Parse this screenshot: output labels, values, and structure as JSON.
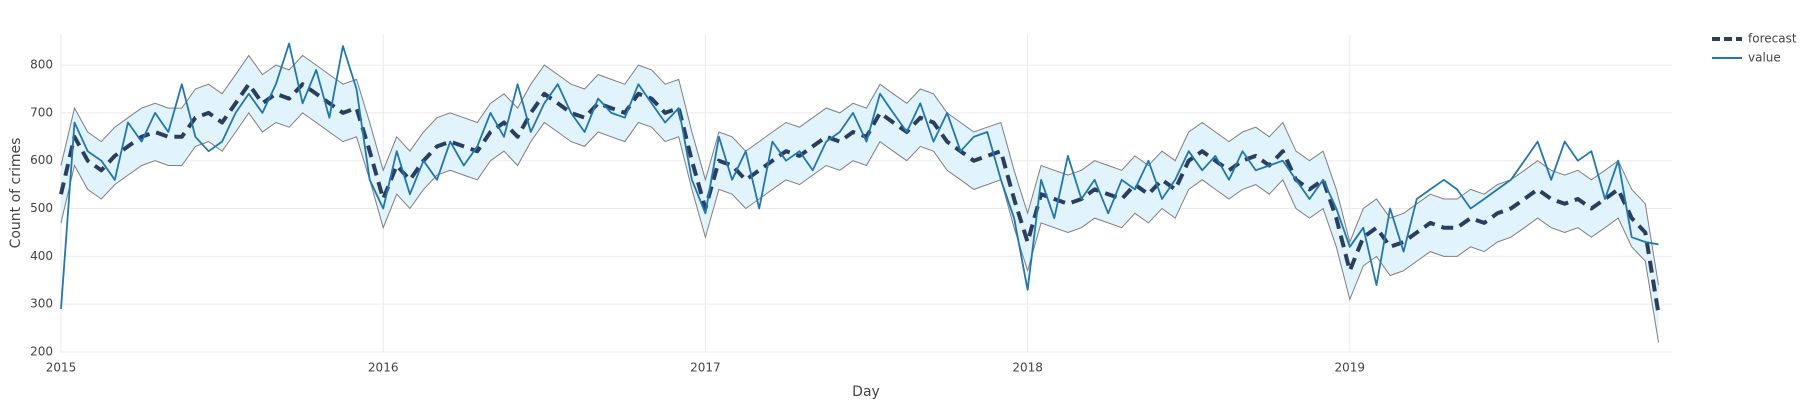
{
  "chart_data": {
    "type": "line",
    "xlabel": "Day",
    "ylabel": "Count of crimes",
    "xlim": [
      2015,
      2020
    ],
    "xticks": [
      2015,
      2016,
      2017,
      2018,
      2019
    ],
    "ylim": [
      200,
      865
    ],
    "yticks": [
      200,
      300,
      400,
      500,
      600,
      700,
      800
    ],
    "grid": true,
    "legend": "outside-top-right",
    "x": [
      2015,
      2015.042,
      2015.083,
      2015.125,
      2015.167,
      2015.208,
      2015.25,
      2015.292,
      2015.333,
      2015.375,
      2015.417,
      2015.458,
      2015.5,
      2015.542,
      2015.583,
      2015.625,
      2015.667,
      2015.708,
      2015.75,
      2015.792,
      2015.833,
      2015.875,
      2015.917,
      2015.958,
      2016,
      2016.042,
      2016.083,
      2016.125,
      2016.167,
      2016.208,
      2016.25,
      2016.292,
      2016.333,
      2016.375,
      2016.417,
      2016.458,
      2016.5,
      2016.542,
      2016.583,
      2016.625,
      2016.667,
      2016.708,
      2016.75,
      2016.792,
      2016.833,
      2016.875,
      2016.917,
      2016.958,
      2017,
      2017.042,
      2017.083,
      2017.125,
      2017.167,
      2017.208,
      2017.25,
      2017.292,
      2017.333,
      2017.375,
      2017.417,
      2017.458,
      2017.5,
      2017.542,
      2017.583,
      2017.625,
      2017.667,
      2017.708,
      2017.75,
      2017.792,
      2017.833,
      2017.875,
      2017.917,
      2017.958,
      2018,
      2018.042,
      2018.083,
      2018.125,
      2018.167,
      2018.208,
      2018.25,
      2018.292,
      2018.333,
      2018.375,
      2018.417,
      2018.458,
      2018.5,
      2018.542,
      2018.583,
      2018.625,
      2018.667,
      2018.708,
      2018.75,
      2018.792,
      2018.833,
      2018.875,
      2018.917,
      2018.958,
      2019,
      2019.042,
      2019.083,
      2019.125,
      2019.167,
      2019.208,
      2019.25,
      2019.292,
      2019.333,
      2019.375,
      2019.417,
      2019.458,
      2019.5,
      2019.542,
      2019.583,
      2019.625,
      2019.667,
      2019.708,
      2019.75,
      2019.792,
      2019.833,
      2019.875,
      2019.917,
      2019.958
    ],
    "band": {
      "fill": "#e1f3fd",
      "line_color": "#7f7f7f",
      "upper": [
        590,
        710,
        660,
        640,
        670,
        690,
        710,
        720,
        710,
        710,
        750,
        760,
        740,
        780,
        820,
        780,
        800,
        790,
        820,
        800,
        780,
        760,
        770,
        680,
        580,
        650,
        620,
        660,
        690,
        700,
        690,
        680,
        720,
        740,
        710,
        760,
        800,
        780,
        760,
        750,
        780,
        770,
        760,
        800,
        790,
        760,
        770,
        660,
        560,
        660,
        650,
        620,
        640,
        660,
        680,
        670,
        690,
        710,
        700,
        720,
        710,
        760,
        740,
        720,
        750,
        740,
        700,
        680,
        660,
        670,
        680,
        580,
        490,
        590,
        580,
        570,
        580,
        600,
        590,
        580,
        610,
        590,
        620,
        600,
        660,
        680,
        660,
        640,
        660,
        670,
        650,
        680,
        620,
        600,
        620,
        540,
        430,
        500,
        520,
        480,
        490,
        510,
        530,
        520,
        520,
        540,
        530,
        550,
        560,
        580,
        600,
        580,
        570,
        580,
        560,
        580,
        600,
        540,
        510,
        340
      ],
      "lower": [
        470,
        590,
        540,
        520,
        550,
        570,
        590,
        600,
        590,
        590,
        630,
        640,
        620,
        660,
        700,
        660,
        680,
        670,
        700,
        680,
        660,
        640,
        650,
        560,
        460,
        530,
        500,
        540,
        570,
        580,
        570,
        560,
        600,
        620,
        590,
        640,
        680,
        660,
        640,
        630,
        660,
        650,
        640,
        680,
        670,
        640,
        650,
        540,
        440,
        540,
        530,
        500,
        520,
        540,
        560,
        550,
        570,
        590,
        580,
        600,
        590,
        640,
        620,
        600,
        630,
        620,
        580,
        560,
        540,
        550,
        560,
        460,
        370,
        470,
        460,
        450,
        460,
        480,
        470,
        460,
        490,
        470,
        500,
        480,
        540,
        560,
        540,
        520,
        540,
        550,
        530,
        560,
        500,
        480,
        500,
        420,
        310,
        380,
        400,
        360,
        370,
        390,
        410,
        400,
        400,
        420,
        410,
        430,
        440,
        460,
        480,
        460,
        450,
        460,
        440,
        460,
        480,
        420,
        390,
        220
      ]
    },
    "series": [
      {
        "name": "forecast",
        "color": "#2a3f5f",
        "dash": "dash",
        "values": [
          530,
          650,
          600,
          580,
          610,
          630,
          650,
          660,
          650,
          650,
          690,
          700,
          680,
          720,
          760,
          720,
          740,
          730,
          760,
          740,
          720,
          700,
          710,
          620,
          520,
          590,
          560,
          600,
          630,
          640,
          630,
          620,
          660,
          680,
          650,
          700,
          740,
          720,
          700,
          690,
          720,
          710,
          700,
          740,
          730,
          700,
          710,
          600,
          500,
          600,
          590,
          560,
          580,
          600,
          620,
          610,
          630,
          650,
          640,
          660,
          650,
          700,
          680,
          660,
          690,
          680,
          640,
          620,
          600,
          610,
          620,
          520,
          430,
          530,
          520,
          510,
          520,
          540,
          530,
          520,
          550,
          530,
          560,
          540,
          600,
          620,
          600,
          580,
          600,
          610,
          590,
          620,
          560,
          540,
          560,
          480,
          370,
          440,
          460,
          420,
          430,
          450,
          470,
          460,
          460,
          480,
          470,
          490,
          500,
          520,
          540,
          520,
          510,
          520,
          500,
          520,
          540,
          480,
          450,
          280
        ]
      },
      {
        "name": "value",
        "color": "#1f77b4",
        "dash": "solid",
        "values": [
          290,
          680,
          620,
          600,
          560,
          680,
          640,
          700,
          660,
          760,
          650,
          620,
          640,
          700,
          740,
          700,
          760,
          845,
          720,
          790,
          690,
          840,
          750,
          560,
          500,
          620,
          530,
          600,
          560,
          640,
          590,
          630,
          700,
          650,
          760,
          660,
          720,
          760,
          700,
          660,
          730,
          700,
          690,
          760,
          720,
          680,
          710,
          560,
          490,
          650,
          560,
          620,
          500,
          640,
          600,
          620,
          580,
          640,
          660,
          700,
          640,
          740,
          700,
          660,
          720,
          640,
          700,
          620,
          650,
          660,
          560,
          480,
          330,
          560,
          480,
          610,
          520,
          560,
          490,
          560,
          540,
          600,
          520,
          560,
          620,
          580,
          610,
          560,
          620,
          580,
          590,
          600,
          560,
          520,
          560,
          500,
          420,
          460,
          340,
          500,
          410,
          520,
          540,
          560,
          540,
          500,
          520,
          540,
          560,
          600,
          640,
          560,
          640,
          600,
          620,
          520,
          600,
          440,
          430,
          425
        ]
      }
    ]
  }
}
